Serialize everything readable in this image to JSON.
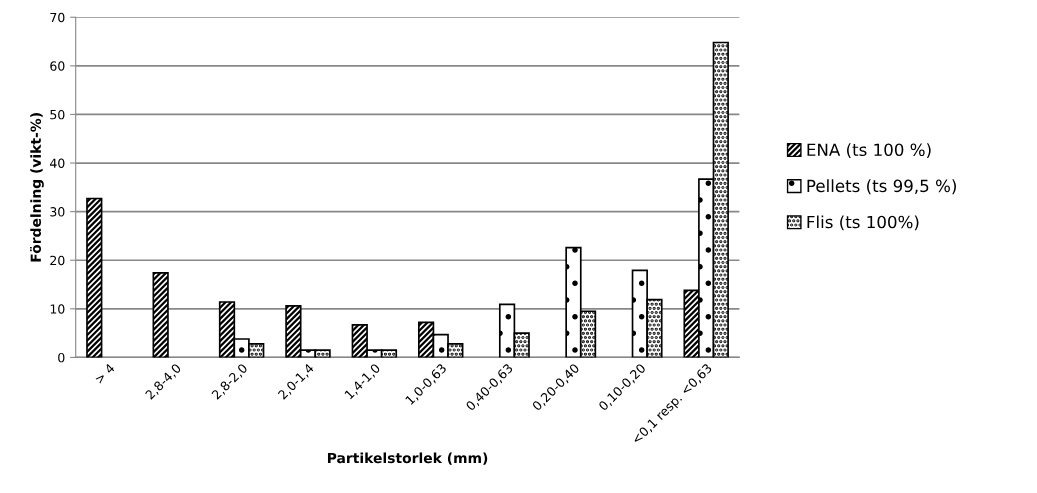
{
  "chart_data": {
    "type": "bar",
    "xlabel": "Partikelstorlek (mm)",
    "ylabel": "Fördelning (vikt-%)",
    "categories": [
      "> 4",
      "2,8-4,0",
      "2,8-2,0",
      "2,0-1,4",
      "1,4-1,0",
      "1,0-0,63",
      "0,40-0,63",
      "0,20-0,40",
      "0,10-0,20",
      "<0,1 resp. <0,63"
    ],
    "series": [
      {
        "name": "ENA (ts 100 %)",
        "color": "#000000",
        "values": [
          32.7,
          17.4,
          11.4,
          10.6,
          6.7,
          7.2,
          null,
          null,
          null,
          13.8
        ]
      },
      {
        "name": "Pellets (ts 99,5 %)",
        "color": "#000000",
        "values": [
          null,
          null,
          3.8,
          1.5,
          1.5,
          4.7,
          10.9,
          22.6,
          17.9,
          36.7
        ]
      },
      {
        "name": "Flis (ts 100%)",
        "color": "#000000",
        "values": [
          null,
          null,
          2.8,
          1.5,
          1.5,
          2.8,
          5.0,
          9.5,
          11.9,
          64.8
        ]
      }
    ],
    "ylim": [
      0,
      70
    ],
    "yticks": [
      0,
      10,
      20,
      30,
      40,
      50,
      60,
      70
    ],
    "grid": "y",
    "legend": "right"
  }
}
